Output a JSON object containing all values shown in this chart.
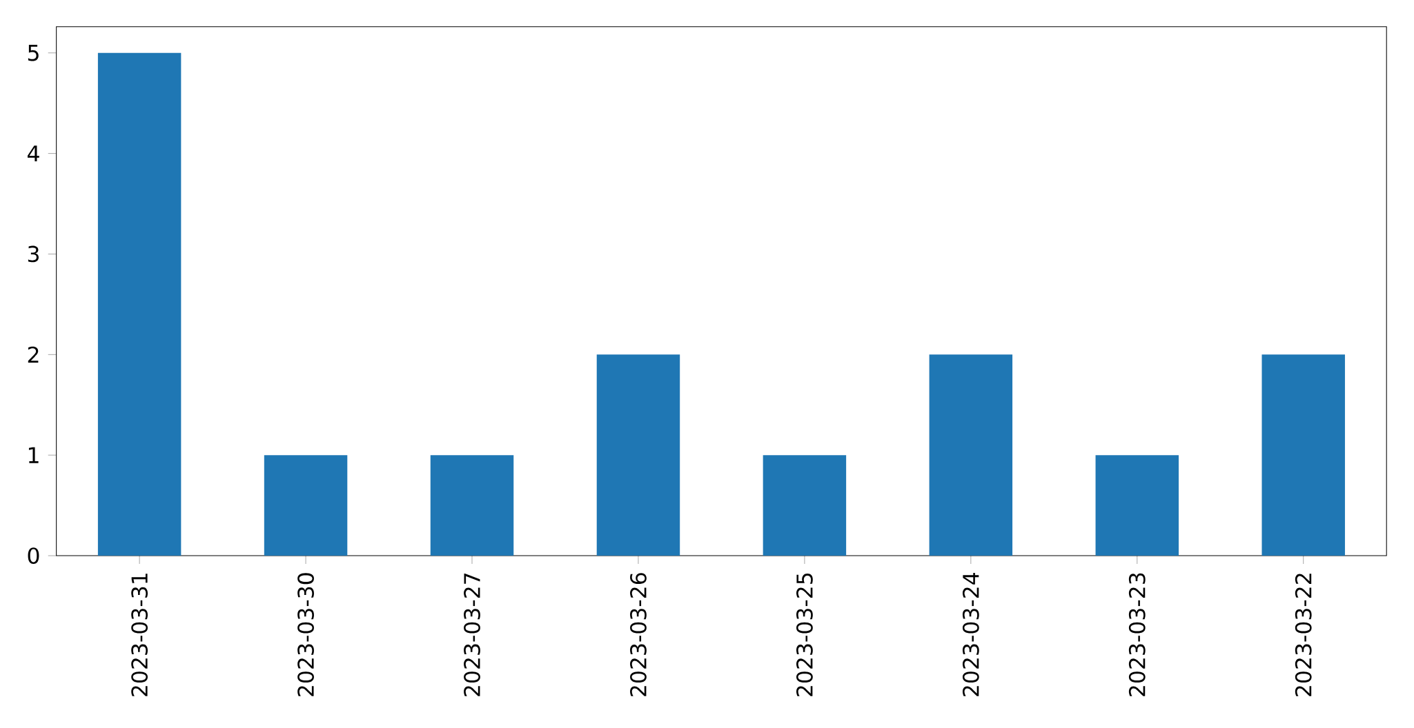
{
  "chart_data": {
    "type": "bar",
    "categories": [
      "2023-03-31",
      "2023-03-30",
      "2023-03-27",
      "2023-03-26",
      "2023-03-25",
      "2023-03-24",
      "2023-03-23",
      "2023-03-22"
    ],
    "values": [
      5,
      1,
      1,
      2,
      1,
      2,
      1,
      2
    ],
    "color": "#1f77b4",
    "ylim": [
      0,
      5.26
    ],
    "yticks": [
      0,
      1,
      2,
      3,
      4,
      5
    ],
    "grid": false
  }
}
